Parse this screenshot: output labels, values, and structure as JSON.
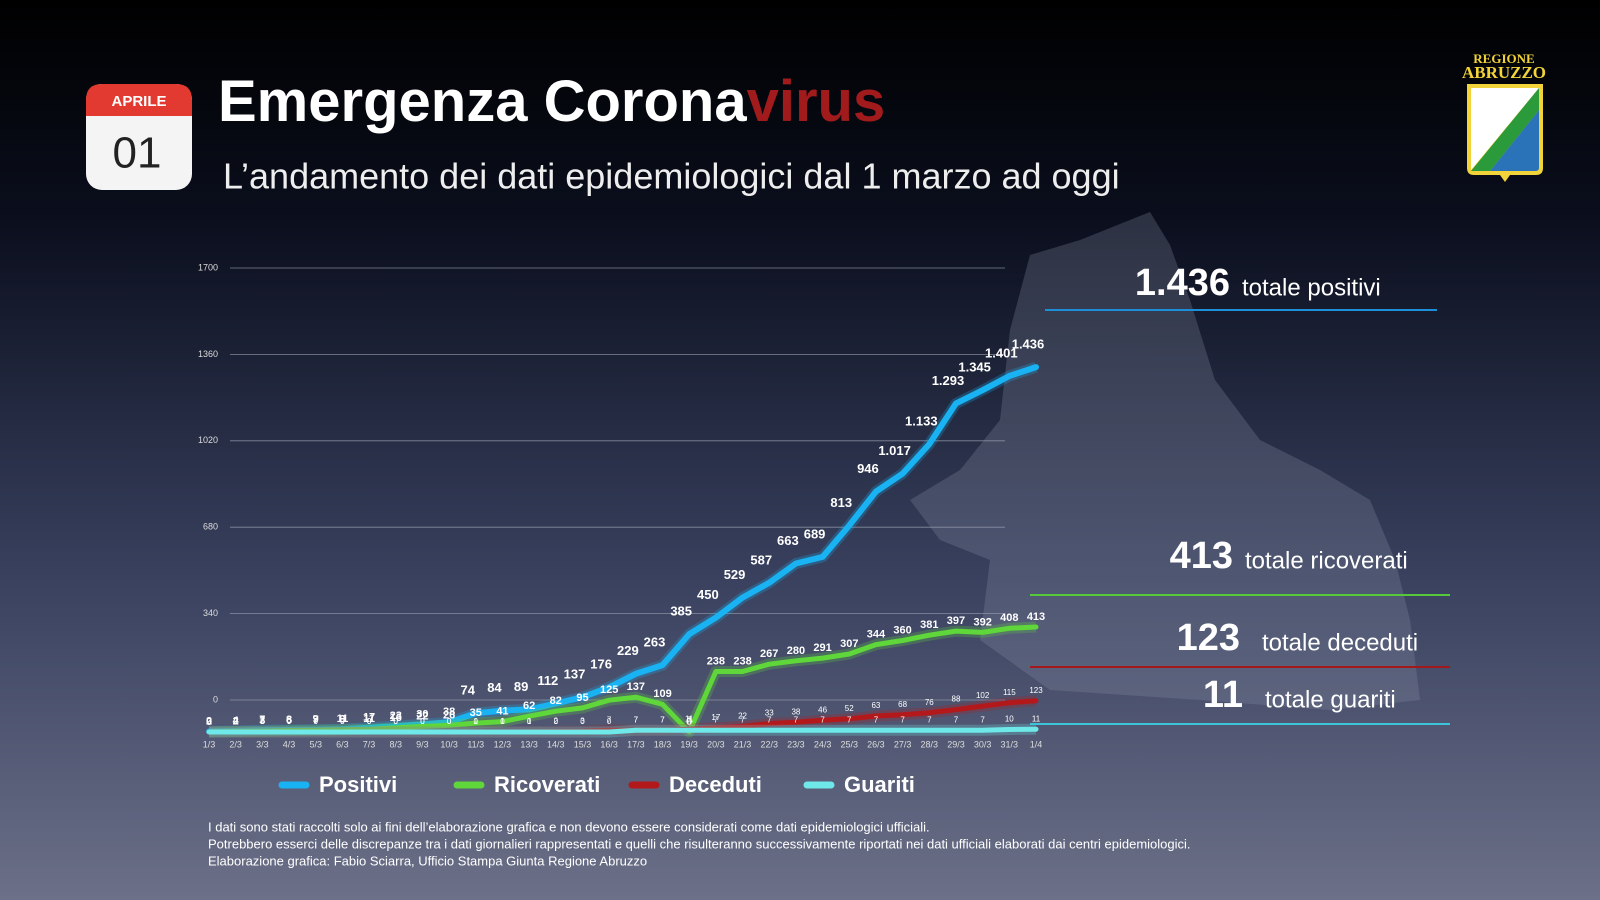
{
  "header": {
    "calendar_month": "APRILE",
    "calendar_day": "01",
    "title_main": "Emergenza Corona",
    "title_accent": "virus",
    "subtitle": "L’andamento dei dati epidemiologici dal 1 marzo ad oggi",
    "logo_line1": "REGIONE",
    "logo_line2": "ABRUZZO"
  },
  "chart_data": {
    "type": "line",
    "categories": [
      "1/3",
      "2/3",
      "3/3",
      "4/3",
      "5/3",
      "6/3",
      "7/3",
      "8/3",
      "9/3",
      "10/3",
      "11/3",
      "12/3",
      "13/3",
      "14/3",
      "15/3",
      "16/3",
      "17/3",
      "18/3",
      "19/3",
      "20/3",
      "21/3",
      "22/3",
      "23/3",
      "24/3",
      "25/3",
      "26/3",
      "27/3",
      "28/3",
      "29/3",
      "30/3",
      "31/3",
      "1/4"
    ],
    "ylim": [
      0,
      1700
    ],
    "yticks": [
      0,
      340,
      680,
      1020,
      1360,
      1700
    ],
    "grid": true,
    "series": [
      {
        "name": "Positivi",
        "color": "#19b2f2",
        "values": [
          2,
          4,
          7,
          8,
          9,
          11,
          17,
          23,
          30,
          38,
          74,
          84,
          89,
          112,
          137,
          176,
          229,
          263,
          385,
          450,
          529,
          587,
          663,
          689,
          813,
          946,
          1017,
          1133,
          1293,
          1345,
          1401,
          1436
        ],
        "value_labels": [
          "2",
          "4",
          "7",
          "8",
          "9",
          "11",
          "17",
          "23",
          "30",
          "38",
          "74",
          "84",
          "89",
          "112",
          "137",
          "176",
          "229",
          "263",
          "385",
          "450",
          "529",
          "587",
          "663",
          "689",
          "813",
          "946",
          "1.017",
          "1.133",
          "1.293",
          "1.345",
          "1.401",
          "1.436"
        ]
      },
      {
        "name": "Ricoverati",
        "color": "#5fd63a",
        "values": [
          0,
          2,
          3,
          6,
          7,
          9,
          11,
          16,
          22,
          26,
          35,
          41,
          62,
          82,
          95,
          125,
          137,
          109,
          0,
          238,
          238,
          267,
          280,
          291,
          307,
          344,
          360,
          381,
          397,
          392,
          408,
          413
        ]
      },
      {
        "name": "Deceduti",
        "color": "#b3191b",
        "values": [
          0,
          0,
          0,
          0,
          0,
          0,
          0,
          0,
          0,
          0,
          1,
          1,
          1,
          2,
          3,
          7,
          7,
          7,
          11,
          17,
          22,
          33,
          38,
          46,
          52,
          63,
          68,
          76,
          88,
          102,
          115,
          123
        ]
      },
      {
        "name": "Guariti",
        "color": "#6fe8ea",
        "values": [
          0,
          0,
          0,
          0,
          0,
          0,
          0,
          0,
          0,
          0,
          0,
          0,
          0,
          0,
          0,
          0,
          7,
          7,
          7,
          7,
          7,
          7,
          7,
          7,
          7,
          7,
          7,
          7,
          7,
          7,
          10,
          11
        ]
      }
    ]
  },
  "summary": [
    {
      "value": "1.436",
      "label": "totale positivi",
      "color": "#1d8fd8"
    },
    {
      "value": "413",
      "label": "totale ricoverati",
      "color": "#55c93a"
    },
    {
      "value": "123",
      "label": "totale deceduti",
      "color": "#a3191b"
    },
    {
      "value": "11",
      "label": "totale guariti",
      "color": "#3cc4d8"
    }
  ],
  "footer": [
    "I dati sono stati raccolti solo ai fini dell’elaborazione grafica e non devono essere considerati come dati epidemiologici ufficiali.",
    "Potrebbero esserci delle discrepanze tra i dati giornalieri rappresentati e quelli che risulteranno successivamente riportati nei dati ufficiali elaborati dai centri epidemiologici.",
    "Elaborazione grafica: Fabio Sciarra, Ufficio Stampa Giunta Regione Abruzzo"
  ]
}
